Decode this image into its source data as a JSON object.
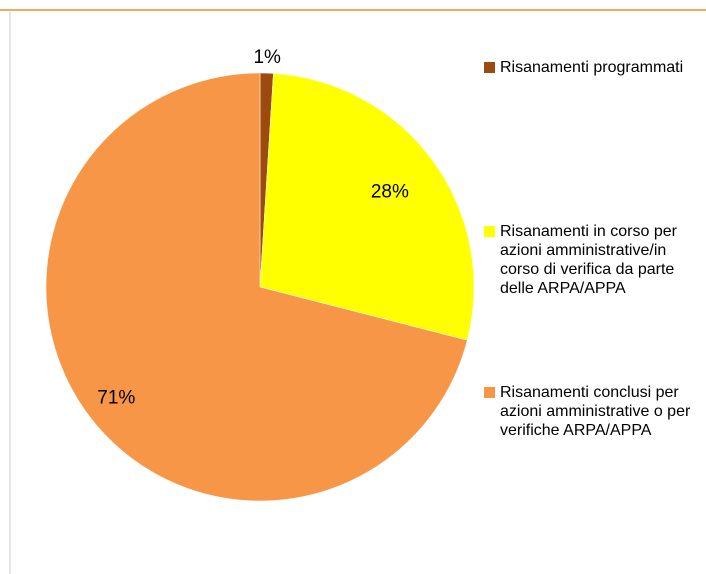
{
  "chart_data": {
    "type": "pie",
    "categories": [
      "Risanamenti programmati",
      "Risanamenti in corso per azioni amministrative/in corso di verifica da parte delle ARPA/APPA",
      "Risanamenti conclusi per azioni amministrative o per verifiche ARPA/APPA"
    ],
    "values": [
      1,
      28,
      71
    ],
    "value_labels": [
      "1%",
      "28%",
      "71%"
    ],
    "colors": [
      "#9c4a0e",
      "#ffff00",
      "#f79646"
    ]
  }
}
